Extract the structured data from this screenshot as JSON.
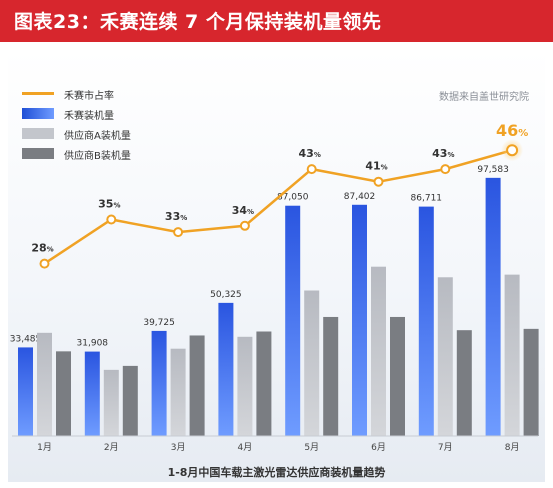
{
  "header": {
    "title": "图表23：禾赛连续 7 个月保持装机量领先"
  },
  "source": "数据来自盖世研究院",
  "chart_data": {
    "type": "bar",
    "title": "1-8月中国车载主激光雷达供应商装机量趋势",
    "categories": [
      "1月",
      "2月",
      "3月",
      "4月",
      "5月",
      "6月",
      "7月",
      "8月"
    ],
    "series": [
      {
        "name": "禾赛装机量",
        "kind": "bar",
        "color": "#2f62e0",
        "values": [
          33485,
          31908,
          39725,
          50325,
          87050,
          87402,
          86711,
          97583
        ],
        "labels": [
          "33,485",
          "31,908",
          "39,725",
          "50,325",
          "87,050",
          "87,402",
          "86,711",
          "97,583"
        ]
      },
      {
        "name": "供应商A装机量",
        "kind": "bar",
        "color": "#bfc2c8",
        "values": [
          39000,
          25000,
          33000,
          37500,
          55000,
          64000,
          60000,
          61000
        ]
      },
      {
        "name": "供应商B装机量",
        "kind": "bar",
        "color": "#7a7d82",
        "values": [
          32000,
          26500,
          38000,
          39500,
          45000,
          45000,
          40000,
          40500
        ]
      }
    ],
    "line": {
      "name": "禾赛市占率",
      "color": "#f0a224",
      "values": [
        28,
        35,
        33,
        34,
        43,
        41,
        43,
        46
      ],
      "unit": "%"
    },
    "ylim": [
      0,
      110000
    ],
    "line_ylim": [
      0,
      60
    ],
    "grid": false,
    "legend": "top-left"
  }
}
